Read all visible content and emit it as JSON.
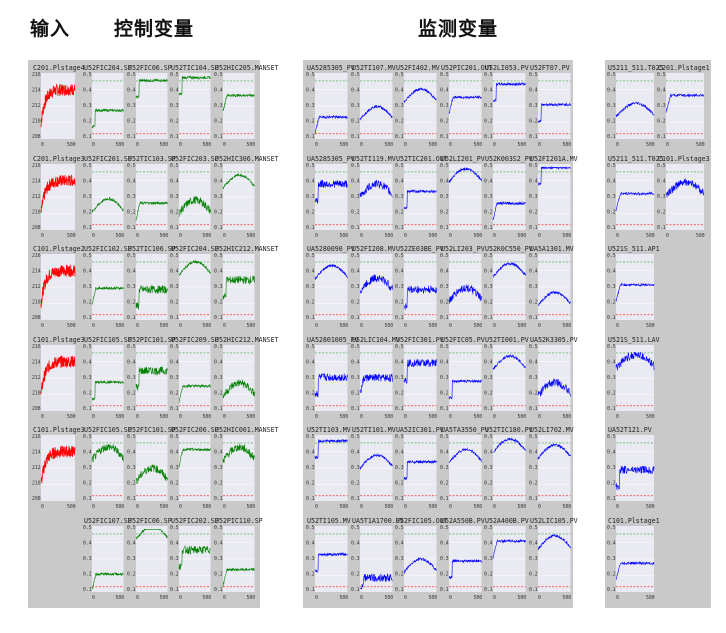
{
  "headers": {
    "input": "输入",
    "control": "控制变量",
    "monitor": "监测变量"
  },
  "colors": {
    "input": "#ff0000",
    "control": "#008000",
    "monitor": "#0000ff",
    "limit_red": "#ff3030",
    "limit_green": "#39a639",
    "plot_bg": "#eaeaf2",
    "panel_bg": "#c9c9c9"
  },
  "groups": [
    {
      "name": "input",
      "start_x": 32,
      "cols": 1,
      "cell_w": 46,
      "color_key": "input",
      "rows": [
        [
          "C201.Plstage4"
        ],
        [
          "C201.Plstage3"
        ],
        [
          "C101.Plstage2"
        ],
        [
          "C101.Plstage3"
        ],
        [
          "C101.Plstage3"
        ],
        [
          ""
        ]
      ]
    },
    {
      "name": "control",
      "start_x": 83,
      "cols": 4,
      "cell_w": 43.5,
      "color_key": "control",
      "rows": [
        [
          "U52FIC204.SP",
          "U52FIC06.SP",
          "U52TIC104.SP",
          "U52HIC205.MANSET"
        ],
        [
          "U52FIC201.SP",
          "U52TIC103.SP",
          "U52FIC203.SP",
          "U52HIC306.MANSET"
        ],
        [
          "U52FIC102.SP",
          "U52TIC106.SP",
          "U52FIC204.SP",
          "U52HIC212.MANSET"
        ],
        [
          "U52FIC105.SP",
          "U52PIC101.SP",
          "U52FIC209.SP",
          "U52HIC212.MANSET"
        ],
        [
          "U52FIC105.SP",
          "U52FIC101.SP",
          "U52FIC206.SP",
          "U52HIC001.MANSET"
        ],
        [
          "U52FIC107.SP",
          "U52FIC06.SP",
          "U52FIC202.SP",
          "U52PIC110.SP"
        ]
      ]
    },
    {
      "name": "monitor",
      "start_x": 306,
      "cols": 6,
      "cell_w": 44.5,
      "color_key": "monitor",
      "rows": [
        [
          "UA5285305_PV",
          "U52TI107.MV",
          "U52FI402.MV",
          "U52PIC201.OUT",
          "U52LI053.PV",
          "U52FT07.PV"
        ],
        [
          "UA5285305_PV",
          "U52TI119.MV",
          "U52TIC201.OUT",
          "U52LI201_PV",
          "U52K003S2_PV",
          "U52FI201A.MV"
        ],
        [
          "UA5280090_PV",
          "U52FI208.MV",
          "U52ZE03BE_PV",
          "U52LI203_PV",
          "U52K0C550_PV",
          "UA5A1301.MV"
        ],
        [
          "UA52801005_PV",
          "U52LIC104.MV",
          "U52FIC301.PV",
          "U52FIC05.PV",
          "U52TI001.PV",
          "UA52K3305.PV"
        ],
        [
          "U52TI103.MV",
          "U52TI101.MV",
          "UA52IC301.PV",
          "UA5TA3550_PV",
          "U52TIC180.PV",
          "U52LI702.MV"
        ],
        [
          "U52TI105.MV",
          "UA5T1A1700.PV",
          "U52FIC105.OUT",
          "U52A550B.PV",
          "U52A400B.PV",
          "U52LIC105.PV"
        ]
      ]
    },
    {
      "name": "monitor_extra",
      "start_x": 607,
      "cols": 2,
      "cell_w": 50,
      "color_key": "monitor",
      "rows": [
        [
          "U5211_511.T025",
          "C201.Plstage1"
        ],
        [
          "U5211_511.T025",
          "C101.Plstage3"
        ],
        [
          "U521S_511.AP1",
          ""
        ],
        [
          "U521S_511.LAV",
          ""
        ],
        [
          "UA52T121.PV",
          ""
        ],
        [
          "C101.Plstage1",
          ""
        ]
      ]
    }
  ],
  "ticks_y": {
    "input": [
      "216.00",
      "214.00",
      "212.00",
      "210.00",
      "208.00"
    ],
    "generic": [
      "0.5",
      "0.4",
      "0.3",
      "0.2",
      "0.1"
    ]
  },
  "ticks_x": [
    "0",
    "500"
  ]
}
